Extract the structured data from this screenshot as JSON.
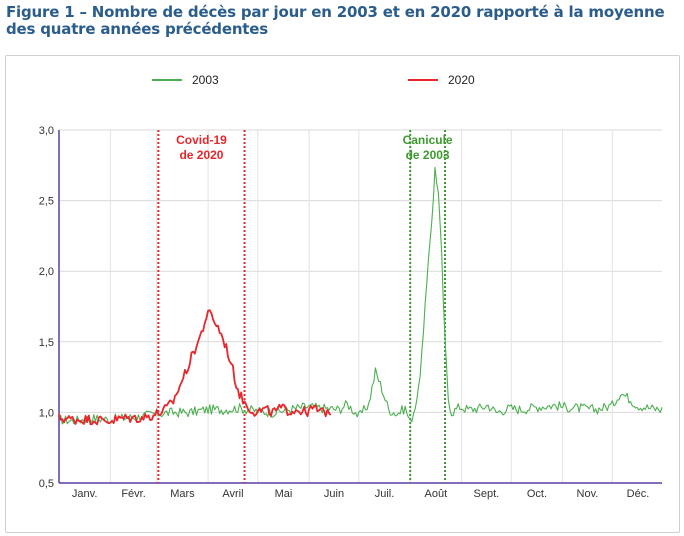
{
  "figure": {
    "title": "Figure 1 – Nombre de décès par jour en 2003 et en 2020 rapporté à la moyenne des quatre années précédentes"
  },
  "chart_data": {
    "type": "line",
    "title": "",
    "xlabel": "",
    "ylabel": "",
    "x_unit": "day-of-year",
    "xlim": [
      1,
      365
    ],
    "ylim": [
      0.5,
      3.0
    ],
    "y_ticks": [
      "0,5",
      "1,0",
      "1,5",
      "2,0",
      "2,5",
      "3,0"
    ],
    "y_tick_values": [
      0.5,
      1.0,
      1.5,
      2.0,
      2.5,
      3.0
    ],
    "month_labels": [
      "Janv.",
      "Févr.",
      "Mars",
      "Avril",
      "Mai",
      "Juin",
      "Juil.",
      "Août",
      "Sept.",
      "Oct.",
      "Nov.",
      "Déc."
    ],
    "grid": true,
    "legend_position": "top",
    "series": [
      {
        "name": "2003",
        "color": "#4caf50",
        "points": [
          [
            1,
            0.95
          ],
          [
            10,
            0.94
          ],
          [
            20,
            0.96
          ],
          [
            31,
            0.95
          ],
          [
            40,
            0.96
          ],
          [
            50,
            0.97
          ],
          [
            59,
            0.99
          ],
          [
            70,
            1.0
          ],
          [
            80,
            1.0
          ],
          [
            90,
            1.02
          ],
          [
            100,
            1.02
          ],
          [
            110,
            1.03
          ],
          [
            120,
            1.01
          ],
          [
            130,
            1.0
          ],
          [
            140,
            1.02
          ],
          [
            150,
            1.04
          ],
          [
            160,
            1.03
          ],
          [
            170,
            1.02
          ],
          [
            175,
            1.06
          ],
          [
            180,
            1.0
          ],
          [
            182,
            0.97
          ],
          [
            188,
            1.06
          ],
          [
            192,
            1.29
          ],
          [
            195,
            1.2
          ],
          [
            200,
            1.02
          ],
          [
            205,
            0.99
          ],
          [
            210,
            1.03
          ],
          [
            213,
            0.93
          ],
          [
            215,
            1.0
          ],
          [
            218,
            1.15
          ],
          [
            221,
            1.55
          ],
          [
            224,
            2.1
          ],
          [
            227,
            2.5
          ],
          [
            228,
            2.74
          ],
          [
            230,
            2.55
          ],
          [
            232,
            2.1
          ],
          [
            234,
            1.5
          ],
          [
            236,
            1.1
          ],
          [
            238,
            1.0
          ],
          [
            243,
            1.04
          ],
          [
            248,
            1.02
          ],
          [
            255,
            1.03
          ],
          [
            260,
            1.05
          ],
          [
            265,
            1.0
          ],
          [
            273,
            1.03
          ],
          [
            280,
            1.02
          ],
          [
            290,
            1.04
          ],
          [
            300,
            1.05
          ],
          [
            305,
            1.04
          ],
          [
            315,
            1.03
          ],
          [
            325,
            1.02
          ],
          [
            335,
            1.05
          ],
          [
            340,
            1.14
          ],
          [
            345,
            1.1
          ],
          [
            350,
            1.05
          ],
          [
            358,
            1.03
          ],
          [
            365,
            1.02
          ]
        ]
      },
      {
        "name": "2020",
        "color": "#e8262b",
        "points": [
          [
            1,
            0.96
          ],
          [
            10,
            0.95
          ],
          [
            20,
            0.95
          ],
          [
            31,
            0.94
          ],
          [
            40,
            0.96
          ],
          [
            50,
            0.96
          ],
          [
            58,
            0.98
          ],
          [
            62,
            1.0
          ],
          [
            66,
            1.03
          ],
          [
            70,
            1.08
          ],
          [
            74,
            1.19
          ],
          [
            78,
            1.3
          ],
          [
            82,
            1.42
          ],
          [
            86,
            1.53
          ],
          [
            88,
            1.6
          ],
          [
            90,
            1.68
          ],
          [
            92,
            1.7
          ],
          [
            94,
            1.67
          ],
          [
            96,
            1.62
          ],
          [
            98,
            1.58
          ],
          [
            100,
            1.52
          ],
          [
            102,
            1.46
          ],
          [
            104,
            1.38
          ],
          [
            106,
            1.3
          ],
          [
            108,
            1.2
          ],
          [
            110,
            1.13
          ],
          [
            113,
            1.07
          ],
          [
            116,
            1.03
          ],
          [
            120,
            1.0
          ],
          [
            125,
            1.02
          ],
          [
            130,
            1.0
          ],
          [
            135,
            1.03
          ],
          [
            140,
            1.01
          ],
          [
            145,
            1.02
          ],
          [
            150,
            1.0
          ],
          [
            155,
            1.03
          ],
          [
            160,
            1.0
          ],
          [
            165,
            1.01
          ]
        ]
      }
    ],
    "annotations": [
      {
        "label_lines": [
          "Covid-19",
          "de 2020"
        ],
        "color": "#e8262b",
        "x_start": 61,
        "x_end": 113
      },
      {
        "label_lines": [
          "Canicule",
          "de 2003"
        ],
        "color": "#3d9a2f",
        "x_start": 213,
        "x_end": 234
      }
    ]
  }
}
